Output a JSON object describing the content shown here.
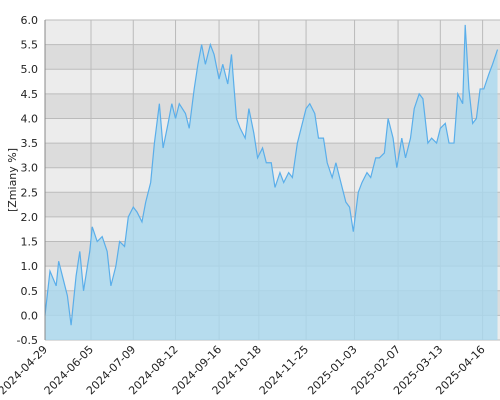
{
  "chart_data": {
    "type": "area",
    "y_label": "[Zmiany %]",
    "x": [
      "2024-04-29",
      "2024-05-03",
      "2024-05-08",
      "2024-05-10",
      "2024-05-14",
      "2024-05-17",
      "2024-05-20",
      "2024-05-24",
      "2024-05-27",
      "2024-05-30",
      "2024-06-04",
      "2024-06-06",
      "2024-06-10",
      "2024-06-14",
      "2024-06-18",
      "2024-06-21",
      "2024-06-25",
      "2024-06-28",
      "2024-07-02",
      "2024-07-05",
      "2024-07-09",
      "2024-07-12",
      "2024-07-16",
      "2024-07-19",
      "2024-07-23",
      "2024-07-26",
      "2024-07-30",
      "2024-08-02",
      "2024-08-06",
      "2024-08-09",
      "2024-08-12",
      "2024-08-15",
      "2024-08-20",
      "2024-08-23",
      "2024-08-27",
      "2024-08-30",
      "2024-09-02",
      "2024-09-05",
      "2024-09-09",
      "2024-09-12",
      "2024-09-16",
      "2024-09-19",
      "2024-09-23",
      "2024-09-26",
      "2024-09-30",
      "2024-10-03",
      "2024-10-07",
      "2024-10-10",
      "2024-10-14",
      "2024-10-17",
      "2024-10-21",
      "2024-10-24",
      "2024-10-28",
      "2024-10-31",
      "2024-11-04",
      "2024-11-07",
      "2024-11-11",
      "2024-11-14",
      "2024-11-18",
      "2024-11-21",
      "2024-11-25",
      "2024-11-28",
      "2024-12-02",
      "2024-12-05",
      "2024-12-09",
      "2024-12-12",
      "2024-12-16",
      "2024-12-19",
      "2024-12-23",
      "2024-12-27",
      "2024-12-30",
      "2025-01-02",
      "2025-01-06",
      "2025-01-09",
      "2025-01-13",
      "2025-01-16",
      "2025-01-20",
      "2025-01-23",
      "2025-01-27",
      "2025-01-30",
      "2025-02-03",
      "2025-02-06",
      "2025-02-10",
      "2025-02-13",
      "2025-02-17",
      "2025-02-20",
      "2025-02-24",
      "2025-02-27",
      "2025-03-03",
      "2025-03-06",
      "2025-03-10",
      "2025-03-13",
      "2025-03-17",
      "2025-03-20",
      "2025-03-24",
      "2025-03-27",
      "2025-03-31",
      "2025-04-02",
      "2025-04-05",
      "2025-04-08",
      "2025-04-11",
      "2025-04-14",
      "2025-04-17",
      "2025-04-21",
      "2025-04-24",
      "2025-04-28"
    ],
    "values": [
      0.0,
      0.9,
      0.6,
      1.1,
      0.7,
      0.4,
      -0.2,
      0.8,
      1.3,
      0.5,
      1.3,
      1.8,
      1.5,
      1.6,
      1.3,
      0.6,
      1.0,
      1.5,
      1.4,
      2.0,
      2.2,
      2.1,
      1.9,
      2.3,
      2.7,
      3.5,
      4.3,
      3.4,
      3.9,
      4.3,
      4.0,
      4.3,
      4.1,
      3.8,
      4.6,
      5.1,
      5.5,
      5.1,
      5.5,
      5.3,
      4.8,
      5.1,
      4.7,
      5.3,
      4.0,
      3.8,
      3.6,
      4.2,
      3.7,
      3.2,
      3.4,
      3.1,
      3.1,
      2.6,
      2.9,
      2.7,
      2.9,
      2.8,
      3.5,
      3.8,
      4.2,
      4.3,
      4.1,
      3.6,
      3.6,
      3.1,
      2.8,
      3.1,
      2.7,
      2.3,
      2.2,
      1.7,
      2.5,
      2.7,
      2.9,
      2.8,
      3.2,
      3.2,
      3.3,
      4.0,
      3.6,
      3.0,
      3.6,
      3.2,
      3.6,
      4.2,
      4.5,
      4.4,
      3.5,
      3.6,
      3.5,
      3.8,
      3.9,
      3.5,
      3.5,
      4.5,
      4.3,
      5.9,
      4.6,
      3.9,
      4.0,
      4.6,
      4.6,
      4.9,
      5.1,
      5.4
    ],
    "line_color": "#5aaeea",
    "fill_color": "#a9d8ef",
    "xlim": [
      "2024-04-29",
      "2025-04-30"
    ],
    "xticks": [
      "2024-04-29",
      "2024-06-05",
      "2024-07-09",
      "2024-08-12",
      "2024-09-16",
      "2024-10-18",
      "2024-11-25",
      "2025-01-03",
      "2025-02-07",
      "2025-03-13",
      "2025-04-16"
    ],
    "ylim": [
      -0.5,
      6.0
    ],
    "yticks": [
      -0.5,
      {
        "value": 0,
        "label": "0.0"
      },
      0.5,
      {
        "value": 1,
        "label": "1.0"
      },
      1.5,
      {
        "value": 2,
        "label": "2.0"
      },
      2.5,
      {
        "value": 3,
        "label": "3.0"
      },
      3.5,
      {
        "value": 4,
        "label": "4.0"
      },
      4.5,
      {
        "value": 5,
        "label": "5.0"
      },
      5.5,
      {
        "value": 6,
        "label": "6.0"
      }
    ],
    "grid": true
  }
}
